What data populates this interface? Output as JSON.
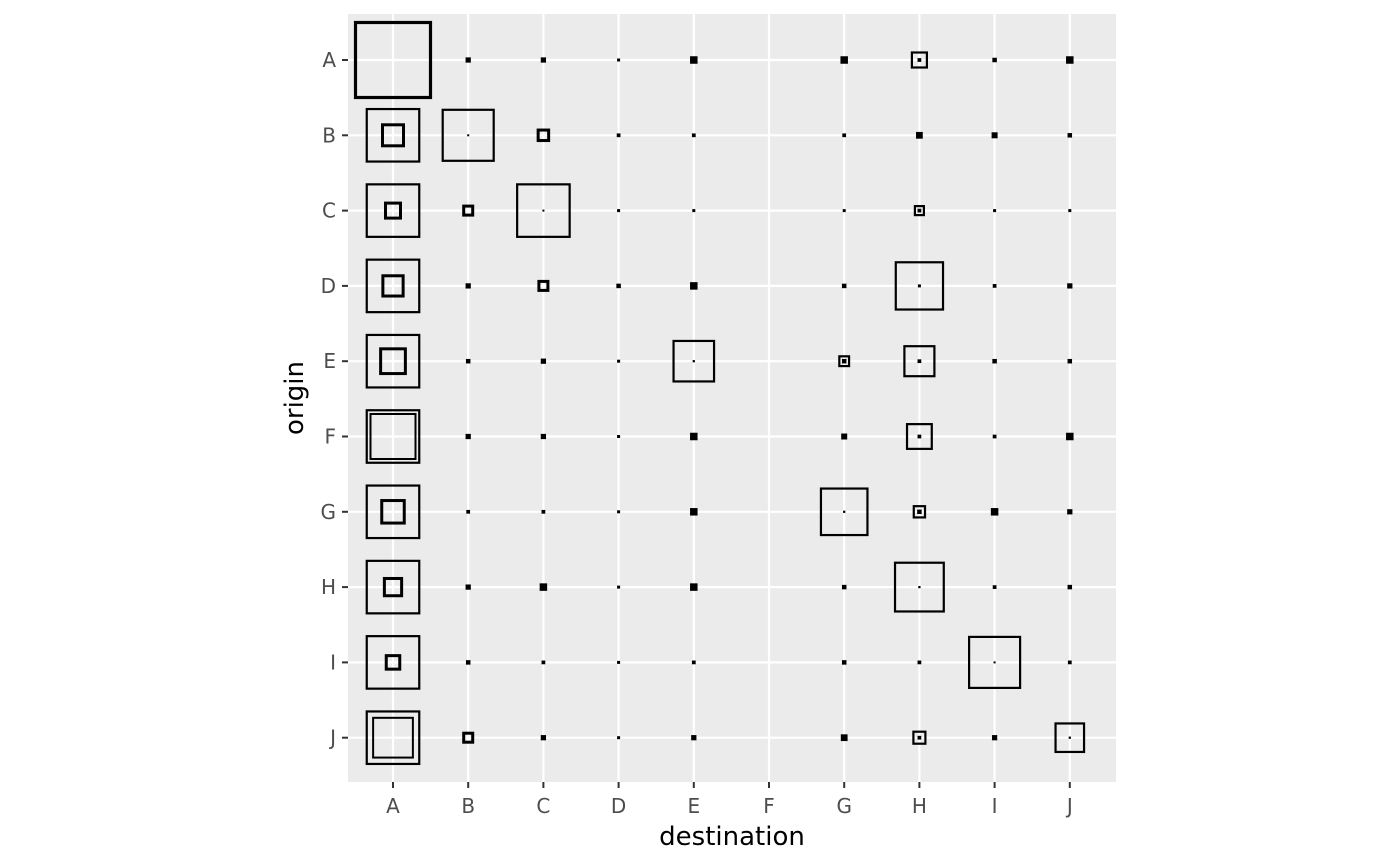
{
  "chart_data": {
    "type": "heatmap",
    "mark_style": "nested-squares",
    "x_axis": {
      "title": "destination",
      "categories": [
        "A",
        "B",
        "C",
        "D",
        "E",
        "F",
        "G",
        "H",
        "I",
        "J"
      ]
    },
    "y_axis": {
      "title": "origin",
      "categories": [
        "A",
        "B",
        "C",
        "D",
        "E",
        "F",
        "G",
        "H",
        "I",
        "J"
      ]
    },
    "grid": true,
    "legend": "none",
    "colors": {
      "panel_background": "#ebebeb",
      "grid_line": "#ffffff",
      "mark_stroke": "#000000",
      "tick_label": "#4d4d4d",
      "axis_title": "#000000"
    },
    "measure_notes": "Each cell is drawn as an outer square (relative size 0-1) and an inner square (relative size 0-1). Values are relative sizes read from the plot.",
    "cells": [
      {
        "origin": "A",
        "destination": "A",
        "outer": 1.0,
        "inner": 1.0
      },
      {
        "origin": "A",
        "destination": "B",
        "outer": 0.07,
        "inner": 0.07
      },
      {
        "origin": "A",
        "destination": "C",
        "outer": 0.07,
        "inner": 0.07
      },
      {
        "origin": "A",
        "destination": "D",
        "outer": 0.04,
        "inner": 0.04
      },
      {
        "origin": "A",
        "destination": "E",
        "outer": 0.1,
        "inner": 0.06
      },
      {
        "origin": "A",
        "destination": "G",
        "outer": 0.1,
        "inner": 0.05
      },
      {
        "origin": "A",
        "destination": "H",
        "outer": 0.2,
        "inner": 0.05
      },
      {
        "origin": "A",
        "destination": "I",
        "outer": 0.06,
        "inner": 0.06
      },
      {
        "origin": "A",
        "destination": "J",
        "outer": 0.1,
        "inner": 0.05
      },
      {
        "origin": "B",
        "destination": "A",
        "outer": 0.7,
        "inner": 0.28
      },
      {
        "origin": "B",
        "destination": "B",
        "outer": 0.68,
        "inner": 0.02
      },
      {
        "origin": "B",
        "destination": "C",
        "outer": 0.14,
        "inner": 0.14
      },
      {
        "origin": "B",
        "destination": "D",
        "outer": 0.05,
        "inner": 0.05
      },
      {
        "origin": "B",
        "destination": "E",
        "outer": 0.05,
        "inner": 0.05
      },
      {
        "origin": "B",
        "destination": "G",
        "outer": 0.05,
        "inner": 0.05
      },
      {
        "origin": "B",
        "destination": "H",
        "outer": 0.09,
        "inner": 0.09
      },
      {
        "origin": "B",
        "destination": "I",
        "outer": 0.08,
        "inner": 0.08
      },
      {
        "origin": "B",
        "destination": "J",
        "outer": 0.06,
        "inner": 0.03
      },
      {
        "origin": "C",
        "destination": "A",
        "outer": 0.7,
        "inner": 0.2
      },
      {
        "origin": "C",
        "destination": "B",
        "outer": 0.12,
        "inner": 0.12
      },
      {
        "origin": "C",
        "destination": "C",
        "outer": 0.7,
        "inner": 0.02
      },
      {
        "origin": "C",
        "destination": "D",
        "outer": 0.04,
        "inner": 0.04
      },
      {
        "origin": "C",
        "destination": "E",
        "outer": 0.04,
        "inner": 0.04
      },
      {
        "origin": "C",
        "destination": "G",
        "outer": 0.04,
        "inner": 0.04
      },
      {
        "origin": "C",
        "destination": "H",
        "outer": 0.12,
        "inner": 0.05
      },
      {
        "origin": "C",
        "destination": "I",
        "outer": 0.04,
        "inner": 0.04
      },
      {
        "origin": "C",
        "destination": "J",
        "outer": 0.04,
        "inner": 0.04
      },
      {
        "origin": "D",
        "destination": "A",
        "outer": 0.7,
        "inner": 0.27
      },
      {
        "origin": "D",
        "destination": "B",
        "outer": 0.07,
        "inner": 0.07
      },
      {
        "origin": "D",
        "destination": "C",
        "outer": 0.12,
        "inner": 0.12
      },
      {
        "origin": "D",
        "destination": "D",
        "outer": 0.06,
        "inner": 0.06
      },
      {
        "origin": "D",
        "destination": "E",
        "outer": 0.1,
        "inner": 0.1
      },
      {
        "origin": "D",
        "destination": "G",
        "outer": 0.06,
        "inner": 0.06
      },
      {
        "origin": "D",
        "destination": "H",
        "outer": 0.63,
        "inner": 0.04
      },
      {
        "origin": "D",
        "destination": "I",
        "outer": 0.05,
        "inner": 0.05
      },
      {
        "origin": "D",
        "destination": "J",
        "outer": 0.07,
        "inner": 0.04
      },
      {
        "origin": "E",
        "destination": "A",
        "outer": 0.7,
        "inner": 0.33
      },
      {
        "origin": "E",
        "destination": "B",
        "outer": 0.06,
        "inner": 0.06
      },
      {
        "origin": "E",
        "destination": "C",
        "outer": 0.07,
        "inner": 0.07
      },
      {
        "origin": "E",
        "destination": "D",
        "outer": 0.04,
        "inner": 0.04
      },
      {
        "origin": "E",
        "destination": "E",
        "outer": 0.54,
        "inner": 0.03
      },
      {
        "origin": "E",
        "destination": "G",
        "outer": 0.13,
        "inner": 0.06
      },
      {
        "origin": "E",
        "destination": "H",
        "outer": 0.4,
        "inner": 0.05
      },
      {
        "origin": "E",
        "destination": "I",
        "outer": 0.06,
        "inner": 0.06
      },
      {
        "origin": "E",
        "destination": "J",
        "outer": 0.06,
        "inner": 0.03
      },
      {
        "origin": "F",
        "destination": "A",
        "outer": 0.7,
        "inner": 0.6
      },
      {
        "origin": "F",
        "destination": "B",
        "outer": 0.07,
        "inner": 0.07
      },
      {
        "origin": "F",
        "destination": "C",
        "outer": 0.07,
        "inner": 0.07
      },
      {
        "origin": "F",
        "destination": "D",
        "outer": 0.04,
        "inner": 0.04
      },
      {
        "origin": "F",
        "destination": "E",
        "outer": 0.1,
        "inner": 0.05
      },
      {
        "origin": "F",
        "destination": "G",
        "outer": 0.08,
        "inner": 0.04
      },
      {
        "origin": "F",
        "destination": "H",
        "outer": 0.33,
        "inner": 0.05
      },
      {
        "origin": "F",
        "destination": "I",
        "outer": 0.05,
        "inner": 0.05
      },
      {
        "origin": "F",
        "destination": "J",
        "outer": 0.1,
        "inner": 0.05
      },
      {
        "origin": "G",
        "destination": "A",
        "outer": 0.7,
        "inner": 0.3
      },
      {
        "origin": "G",
        "destination": "B",
        "outer": 0.05,
        "inner": 0.05
      },
      {
        "origin": "G",
        "destination": "C",
        "outer": 0.05,
        "inner": 0.05
      },
      {
        "origin": "G",
        "destination": "D",
        "outer": 0.04,
        "inner": 0.04
      },
      {
        "origin": "G",
        "destination": "E",
        "outer": 0.1,
        "inner": 0.1
      },
      {
        "origin": "G",
        "destination": "G",
        "outer": 0.62,
        "inner": 0.03
      },
      {
        "origin": "G",
        "destination": "H",
        "outer": 0.15,
        "inner": 0.06
      },
      {
        "origin": "G",
        "destination": "I",
        "outer": 0.1,
        "inner": 0.1
      },
      {
        "origin": "G",
        "destination": "J",
        "outer": 0.07,
        "inner": 0.04
      },
      {
        "origin": "H",
        "destination": "A",
        "outer": 0.7,
        "inner": 0.23
      },
      {
        "origin": "H",
        "destination": "B",
        "outer": 0.07,
        "inner": 0.07
      },
      {
        "origin": "H",
        "destination": "C",
        "outer": 0.1,
        "inner": 0.1
      },
      {
        "origin": "H",
        "destination": "D",
        "outer": 0.04,
        "inner": 0.04
      },
      {
        "origin": "H",
        "destination": "E",
        "outer": 0.1,
        "inner": 0.05
      },
      {
        "origin": "H",
        "destination": "G",
        "outer": 0.06,
        "inner": 0.06
      },
      {
        "origin": "H",
        "destination": "H",
        "outer": 0.65,
        "inner": 0.03
      },
      {
        "origin": "H",
        "destination": "I",
        "outer": 0.05,
        "inner": 0.05
      },
      {
        "origin": "H",
        "destination": "J",
        "outer": 0.06,
        "inner": 0.06
      },
      {
        "origin": "I",
        "destination": "A",
        "outer": 0.7,
        "inner": 0.18
      },
      {
        "origin": "I",
        "destination": "B",
        "outer": 0.06,
        "inner": 0.06
      },
      {
        "origin": "I",
        "destination": "C",
        "outer": 0.05,
        "inner": 0.05
      },
      {
        "origin": "I",
        "destination": "D",
        "outer": 0.04,
        "inner": 0.04
      },
      {
        "origin": "I",
        "destination": "E",
        "outer": 0.05,
        "inner": 0.05
      },
      {
        "origin": "I",
        "destination": "G",
        "outer": 0.06,
        "inner": 0.03
      },
      {
        "origin": "I",
        "destination": "H",
        "outer": 0.05,
        "inner": 0.05
      },
      {
        "origin": "I",
        "destination": "I",
        "outer": 0.68,
        "inner": 0.02
      },
      {
        "origin": "I",
        "destination": "J",
        "outer": 0.05,
        "inner": 0.05
      },
      {
        "origin": "J",
        "destination": "A",
        "outer": 0.7,
        "inner": 0.53
      },
      {
        "origin": "J",
        "destination": "B",
        "outer": 0.12,
        "inner": 0.12
      },
      {
        "origin": "J",
        "destination": "C",
        "outer": 0.07,
        "inner": 0.07
      },
      {
        "origin": "J",
        "destination": "D",
        "outer": 0.04,
        "inner": 0.04
      },
      {
        "origin": "J",
        "destination": "E",
        "outer": 0.07,
        "inner": 0.07
      },
      {
        "origin": "J",
        "destination": "G",
        "outer": 0.09,
        "inner": 0.04
      },
      {
        "origin": "J",
        "destination": "H",
        "outer": 0.16,
        "inner": 0.05
      },
      {
        "origin": "J",
        "destination": "I",
        "outer": 0.07,
        "inner": 0.07
      },
      {
        "origin": "J",
        "destination": "J",
        "outer": 0.38,
        "inner": 0.03
      }
    ]
  }
}
